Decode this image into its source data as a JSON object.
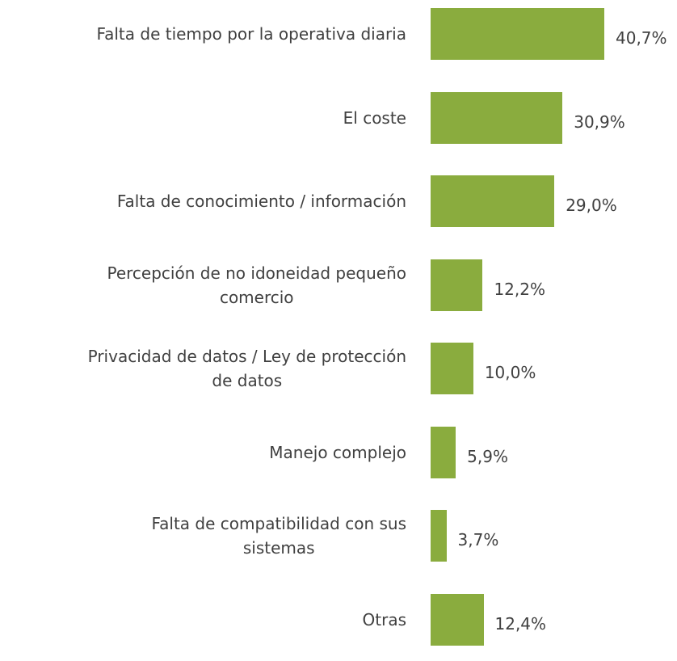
{
  "chart_data": {
    "type": "barh",
    "categories": [
      "Falta de tiempo por la operativa diaria",
      "El coste",
      "Falta de conocimiento / información",
      "Percepción de no idoneidad pequeño\ncomercio",
      "Privacidad de datos / Ley de protección\nde datos",
      "Manejo complejo",
      "Falta de compatibilidad con sus\nsistemas",
      "Otras"
    ],
    "values": [
      40.7,
      30.9,
      29.0,
      12.2,
      10.0,
      5.9,
      3.7,
      12.4
    ],
    "value_labels": [
      "40,7%",
      "30,9%",
      "29,0%",
      "12,2%",
      "10,0%",
      "5,9%",
      "3,7%",
      "12,4%"
    ],
    "color": "#8aac3e"
  }
}
